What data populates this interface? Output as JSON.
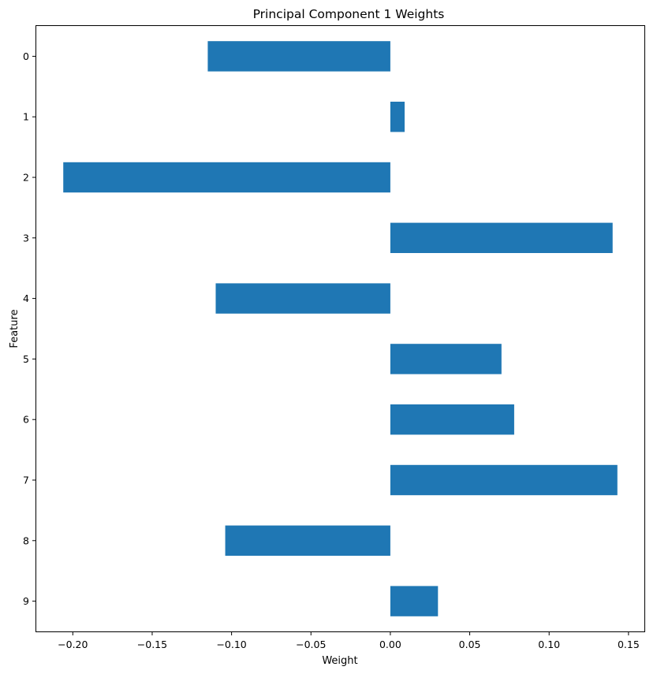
{
  "chart_data": {
    "type": "bar",
    "orientation": "horizontal",
    "title": "Principal Component 1 Weights",
    "xlabel": "Weight",
    "ylabel": "Feature",
    "categories": [
      "0",
      "1",
      "2",
      "3",
      "4",
      "5",
      "6",
      "7",
      "8",
      "9"
    ],
    "values": [
      -0.115,
      0.009,
      -0.206,
      0.14,
      -0.11,
      0.07,
      0.078,
      0.143,
      -0.104,
      0.03
    ],
    "xlim": [
      -0.223,
      0.16
    ],
    "xticks": [
      -0.2,
      -0.15,
      -0.1,
      -0.05,
      0.0,
      0.05,
      0.1,
      0.15
    ],
    "xtick_labels": [
      "−0.20",
      "−0.15",
      "−0.10",
      "−0.05",
      "0.00",
      "0.05",
      "0.10",
      "0.15"
    ],
    "y_inverted": true,
    "grid": false,
    "legend": "none",
    "bar_color": "#1f77b4"
  }
}
